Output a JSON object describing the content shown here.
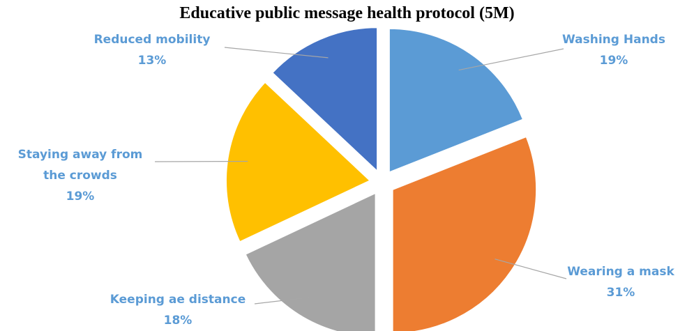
{
  "chart_data": {
    "type": "pie",
    "title": "Educative public message health protocol (5M)",
    "label_color": "#5B9BD5",
    "leader_color": "#A6A6A6",
    "slices": [
      {
        "name": "Washing Hands",
        "label_lines": [
          "Washing Hands"
        ],
        "value": 19,
        "value_label": "19%",
        "color": "#5B9BD5"
      },
      {
        "name": "Wearing a mask",
        "label_lines": [
          "Wearing a mask"
        ],
        "value": 31,
        "value_label": "31%",
        "color": "#ED7D31"
      },
      {
        "name": "Keeping ae distance",
        "label_lines": [
          "Keeping ae distance"
        ],
        "value": 18,
        "value_label": "18%",
        "color": "#A5A5A5"
      },
      {
        "name": "Staying away from the crowds",
        "label_lines": [
          "Staying away from",
          "the crowds"
        ],
        "value": 19,
        "value_label": "19%",
        "color": "#FFC000"
      },
      {
        "name": "Reduced mobility",
        "label_lines": [
          "Reduced mobility"
        ],
        "value": 13,
        "value_label": "13%",
        "color": "#4472C4"
      }
    ]
  }
}
